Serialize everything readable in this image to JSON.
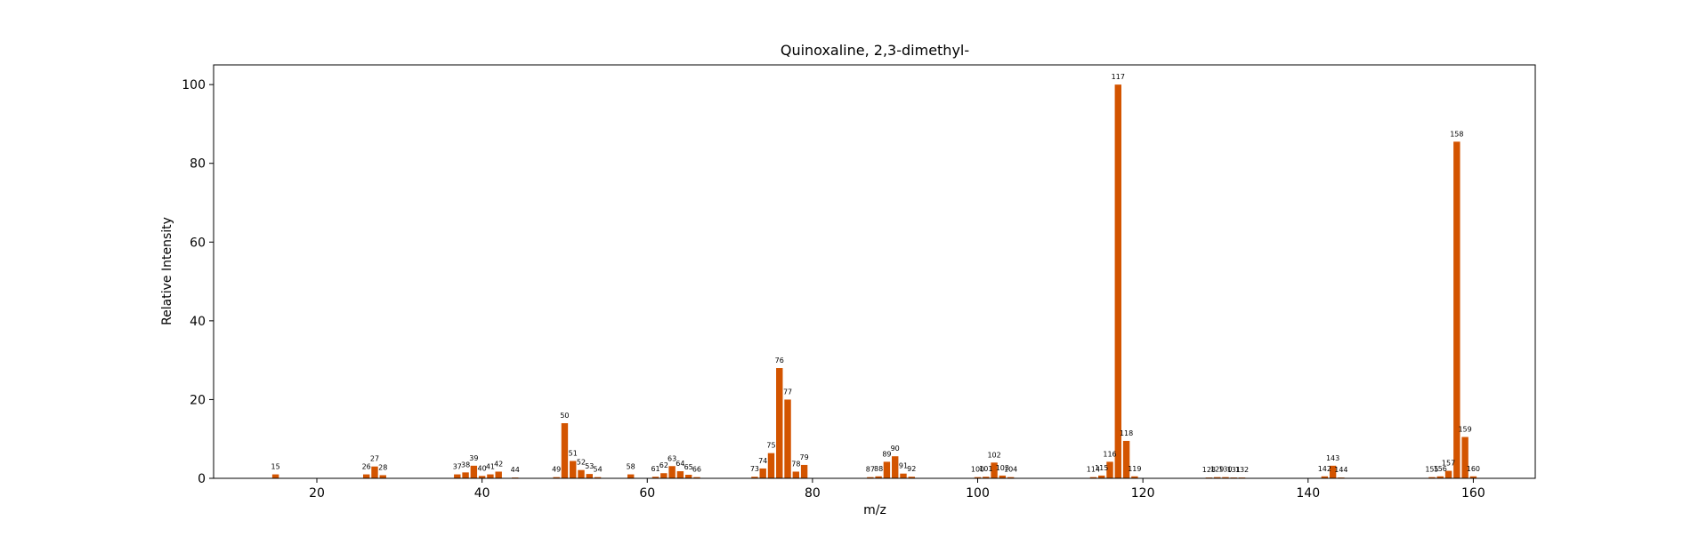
{
  "chart_data": {
    "type": "bar",
    "title": "Quinoxaline, 2,3-dimethyl-",
    "xlabel": "m/z",
    "ylabel": "Relative Intensity",
    "xlim": [
      7.5,
      167.5
    ],
    "ylim": [
      0,
      105
    ],
    "xticks": [
      20,
      40,
      60,
      80,
      100,
      120,
      140,
      160
    ],
    "yticks": [
      0,
      20,
      40,
      60,
      80,
      100
    ],
    "grid": false,
    "bar_color": "#d35400",
    "series": [
      {
        "x": [
          15,
          26,
          27,
          28,
          37,
          38,
          39,
          40,
          41,
          42,
          44,
          49,
          50,
          51,
          52,
          53,
          54,
          58,
          61,
          62,
          63,
          64,
          65,
          66,
          73,
          74,
          75,
          76,
          77,
          78,
          79,
          87,
          88,
          89,
          90,
          91,
          92,
          100,
          101,
          102,
          103,
          104,
          114,
          115,
          116,
          117,
          118,
          119,
          128,
          129,
          130,
          131,
          132,
          142,
          143,
          144,
          155,
          156,
          157,
          158,
          159,
          160
        ],
        "values": [
          1.0,
          1.0,
          3.0,
          0.8,
          1.0,
          1.5,
          3.2,
          0.6,
          1.0,
          1.7,
          0.2,
          0.3,
          14.0,
          4.4,
          2.1,
          1.1,
          0.3,
          1.0,
          0.4,
          1.3,
          3.1,
          1.8,
          0.9,
          0.3,
          0.4,
          2.5,
          6.4,
          28.0,
          20.0,
          1.7,
          3.4,
          0.3,
          0.5,
          4.2,
          5.6,
          1.2,
          0.4,
          0.3,
          0.4,
          4.0,
          0.7,
          0.3,
          0.3,
          0.7,
          4.2,
          100.0,
          9.5,
          0.5,
          0.2,
          0.3,
          0.3,
          0.2,
          0.2,
          0.5,
          3.2,
          0.2,
          0.3,
          0.5,
          1.9,
          85.5,
          10.5,
          0.5
        ]
      }
    ]
  }
}
